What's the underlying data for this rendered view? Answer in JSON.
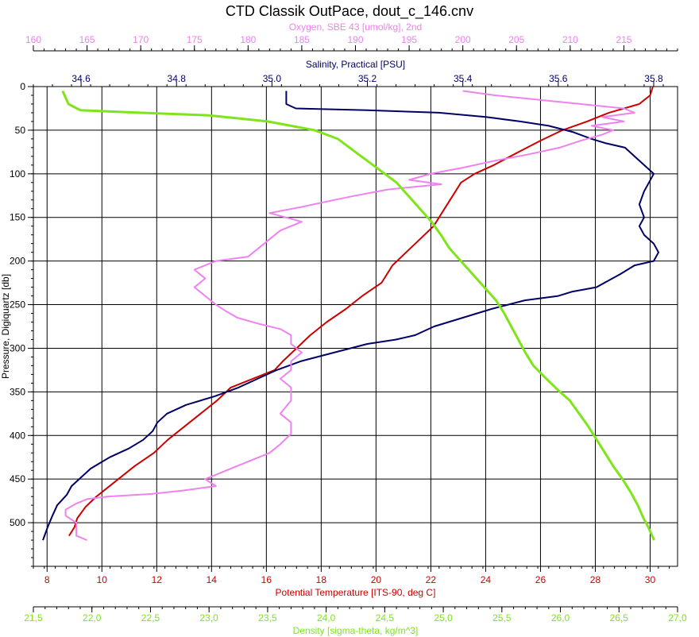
{
  "chart_data": {
    "type": "line",
    "title": "CTD Classik OutPace, dout_c_146.cnv",
    "axes": {
      "pressure": {
        "label": "Pressure, Digiquartz [db]",
        "range": [
          0,
          550
        ],
        "inverted": true,
        "ticks": [
          0,
          50,
          100,
          150,
          200,
          250,
          300,
          350,
          400,
          450,
          500
        ],
        "color": "#000000"
      },
      "oxygen": {
        "label": "Oxygen, SBE 43 [umol/kg], 2nd",
        "range": [
          160,
          220
        ],
        "ticks": [
          160,
          165,
          170,
          175,
          180,
          185,
          190,
          195,
          200,
          205,
          210,
          215
        ],
        "color": "#ee82ee"
      },
      "salinity": {
        "label": "Salinity, Practical [PSU]",
        "range": [
          34.5,
          35.85
        ],
        "ticks": [
          34.6,
          34.8,
          35.0,
          35.2,
          35.4,
          35.6,
          35.8
        ],
        "tick_labels": [
          "34.6",
          "34.8",
          "35.0",
          "35.2",
          "35.4",
          "35.6",
          "35.8"
        ],
        "color": "#000066"
      },
      "temperature": {
        "label": "Potential Temperature [ITS-90, deg C]",
        "range": [
          7.5,
          31
        ],
        "ticks": [
          8,
          10,
          12,
          14,
          16,
          18,
          20,
          22,
          24,
          26,
          28,
          30
        ],
        "color": "#cc0000"
      },
      "density": {
        "label": "Density [sigma-theta, kg/m^3]",
        "range": [
          21.5,
          27.0
        ],
        "ticks": [
          21.5,
          22.0,
          22.5,
          23.0,
          23.5,
          24.0,
          24.5,
          25.0,
          25.5,
          26.0,
          26.5,
          27.0
        ],
        "tick_labels": [
          "21,5",
          "22,0",
          "22,5",
          "23,0",
          "23,5",
          "24,0",
          "24,5",
          "25,0",
          "25,5",
          "26,0",
          "26,5",
          "27,0"
        ],
        "color": "#7fe51a"
      }
    },
    "grid": true,
    "series": [
      {
        "key": "temperature",
        "axis": "temperature",
        "color": "#cc0000",
        "points": [
          [
            30.1,
            0
          ],
          [
            30.0,
            10
          ],
          [
            29.6,
            20
          ],
          [
            28.5,
            30
          ],
          [
            27.7,
            40
          ],
          [
            26.8,
            50
          ],
          [
            26.0,
            62
          ],
          [
            25.2,
            75
          ],
          [
            24.3,
            90
          ],
          [
            23.6,
            100
          ],
          [
            23.1,
            110
          ],
          [
            22.9,
            120
          ],
          [
            22.5,
            140
          ],
          [
            22.1,
            160
          ],
          [
            21.6,
            175
          ],
          [
            21.1,
            190
          ],
          [
            20.6,
            205
          ],
          [
            20.2,
            225
          ],
          [
            19.5,
            240
          ],
          [
            18.9,
            255
          ],
          [
            18.2,
            270
          ],
          [
            17.6,
            285
          ],
          [
            17.1,
            300
          ],
          [
            16.6,
            315
          ],
          [
            16.3,
            325
          ],
          [
            15.5,
            335
          ],
          [
            14.7,
            345
          ],
          [
            14.2,
            360
          ],
          [
            13.6,
            375
          ],
          [
            13.0,
            390
          ],
          [
            12.4,
            405
          ],
          [
            11.9,
            420
          ],
          [
            11.2,
            435
          ],
          [
            10.6,
            450
          ],
          [
            10.2,
            460
          ],
          [
            9.8,
            470
          ],
          [
            9.4,
            482
          ],
          [
            9.1,
            495
          ],
          [
            9.0,
            505
          ],
          [
            8.8,
            515
          ]
        ]
      },
      {
        "key": "salinity",
        "axis": "salinity",
        "color": "#000066",
        "points": [
          [
            35.03,
            5
          ],
          [
            35.03,
            20
          ],
          [
            35.05,
            25
          ],
          [
            35.2,
            27
          ],
          [
            35.35,
            30
          ],
          [
            35.45,
            35
          ],
          [
            35.52,
            40
          ],
          [
            35.58,
            45
          ],
          [
            35.63,
            52
          ],
          [
            35.67,
            60
          ],
          [
            35.7,
            65
          ],
          [
            35.74,
            70
          ],
          [
            35.76,
            80
          ],
          [
            35.78,
            90
          ],
          [
            35.8,
            100
          ],
          [
            35.79,
            110
          ],
          [
            35.78,
            120
          ],
          [
            35.77,
            135
          ],
          [
            35.78,
            150
          ],
          [
            35.77,
            160
          ],
          [
            35.78,
            170
          ],
          [
            35.8,
            180
          ],
          [
            35.81,
            190
          ],
          [
            35.8,
            200
          ],
          [
            35.76,
            205
          ],
          [
            35.73,
            215
          ],
          [
            35.68,
            230
          ],
          [
            35.63,
            235
          ],
          [
            35.6,
            240
          ],
          [
            35.53,
            245
          ],
          [
            35.46,
            255
          ],
          [
            35.4,
            265
          ],
          [
            35.34,
            275
          ],
          [
            35.3,
            285
          ],
          [
            35.26,
            290
          ],
          [
            35.2,
            295
          ],
          [
            35.13,
            305
          ],
          [
            35.06,
            315
          ],
          [
            35.01,
            325
          ],
          [
            34.97,
            335
          ],
          [
            34.93,
            345
          ],
          [
            34.88,
            355
          ],
          [
            34.82,
            365
          ],
          [
            34.78,
            375
          ],
          [
            34.76,
            385
          ],
          [
            34.75,
            395
          ],
          [
            34.73,
            405
          ],
          [
            34.7,
            415
          ],
          [
            34.66,
            425
          ],
          [
            34.62,
            438
          ],
          [
            34.6,
            448
          ],
          [
            34.58,
            458
          ],
          [
            34.57,
            468
          ],
          [
            34.55,
            480
          ],
          [
            34.54,
            492
          ],
          [
            34.53,
            505
          ],
          [
            34.52,
            520
          ]
        ]
      },
      {
        "key": "oxygen",
        "axis": "oxygen",
        "color": "#ee82ee",
        "points": [
          [
            200,
            5
          ],
          [
            203,
            10
          ],
          [
            207,
            15
          ],
          [
            211,
            20
          ],
          [
            215,
            25
          ],
          [
            216,
            30
          ],
          [
            213,
            35
          ],
          [
            215,
            40
          ],
          [
            212,
            45
          ],
          [
            214,
            50
          ],
          [
            213,
            55
          ],
          [
            211,
            62
          ],
          [
            209,
            70
          ],
          [
            206,
            78
          ],
          [
            203,
            85
          ],
          [
            200,
            93
          ],
          [
            197,
            100
          ],
          [
            195,
            107
          ],
          [
            198,
            112
          ],
          [
            193,
            118
          ],
          [
            190,
            125
          ],
          [
            188,
            130
          ],
          [
            185,
            138
          ],
          [
            182,
            145
          ],
          [
            185,
            155
          ],
          [
            183,
            165
          ],
          [
            182,
            175
          ],
          [
            181,
            185
          ],
          [
            180,
            195
          ],
          [
            177,
            200
          ],
          [
            176,
            205
          ],
          [
            175,
            210
          ],
          [
            176,
            220
          ],
          [
            175,
            230
          ],
          [
            176,
            240
          ],
          [
            177,
            250
          ],
          [
            178,
            258
          ],
          [
            179,
            265
          ],
          [
            181,
            272
          ],
          [
            183,
            278
          ],
          [
            184,
            285
          ],
          [
            184,
            295
          ],
          [
            185,
            305
          ],
          [
            184,
            315
          ],
          [
            184,
            325
          ],
          [
            183,
            335
          ],
          [
            184,
            345
          ],
          [
            184,
            360
          ],
          [
            183,
            375
          ],
          [
            184,
            385
          ],
          [
            184,
            398
          ],
          [
            183,
            410
          ],
          [
            182,
            420
          ],
          [
            180,
            430
          ],
          [
            178,
            440
          ],
          [
            176,
            450
          ],
          [
            177,
            458
          ],
          [
            174,
            463
          ],
          [
            171,
            467
          ],
          [
            167,
            470
          ],
          [
            165,
            473
          ],
          [
            164,
            478
          ],
          [
            163,
            485
          ],
          [
            163,
            492
          ],
          [
            164,
            500
          ],
          [
            164,
            508
          ],
          [
            164,
            515
          ],
          [
            165,
            520
          ]
        ]
      },
      {
        "key": "density",
        "axis": "density",
        "color": "#7fe51a",
        "points": [
          [
            21.75,
            5
          ],
          [
            21.8,
            20
          ],
          [
            21.9,
            27
          ],
          [
            22.4,
            30
          ],
          [
            23.0,
            33
          ],
          [
            23.5,
            40
          ],
          [
            23.9,
            50
          ],
          [
            24.1,
            60
          ],
          [
            24.25,
            75
          ],
          [
            24.4,
            90
          ],
          [
            24.5,
            100
          ],
          [
            24.6,
            110
          ],
          [
            24.7,
            125
          ],
          [
            24.8,
            140
          ],
          [
            24.9,
            155
          ],
          [
            24.98,
            170
          ],
          [
            25.05,
            185
          ],
          [
            25.15,
            200
          ],
          [
            25.25,
            215
          ],
          [
            25.35,
            230
          ],
          [
            25.45,
            245
          ],
          [
            25.52,
            260
          ],
          [
            25.58,
            275
          ],
          [
            25.64,
            290
          ],
          [
            25.7,
            305
          ],
          [
            25.77,
            320
          ],
          [
            25.88,
            335
          ],
          [
            25.98,
            348
          ],
          [
            26.08,
            360
          ],
          [
            26.16,
            375
          ],
          [
            26.24,
            390
          ],
          [
            26.31,
            405
          ],
          [
            26.38,
            420
          ],
          [
            26.45,
            435
          ],
          [
            26.53,
            450
          ],
          [
            26.6,
            465
          ],
          [
            26.66,
            480
          ],
          [
            26.71,
            495
          ],
          [
            26.75,
            505
          ],
          [
            26.8,
            520
          ]
        ]
      }
    ]
  }
}
